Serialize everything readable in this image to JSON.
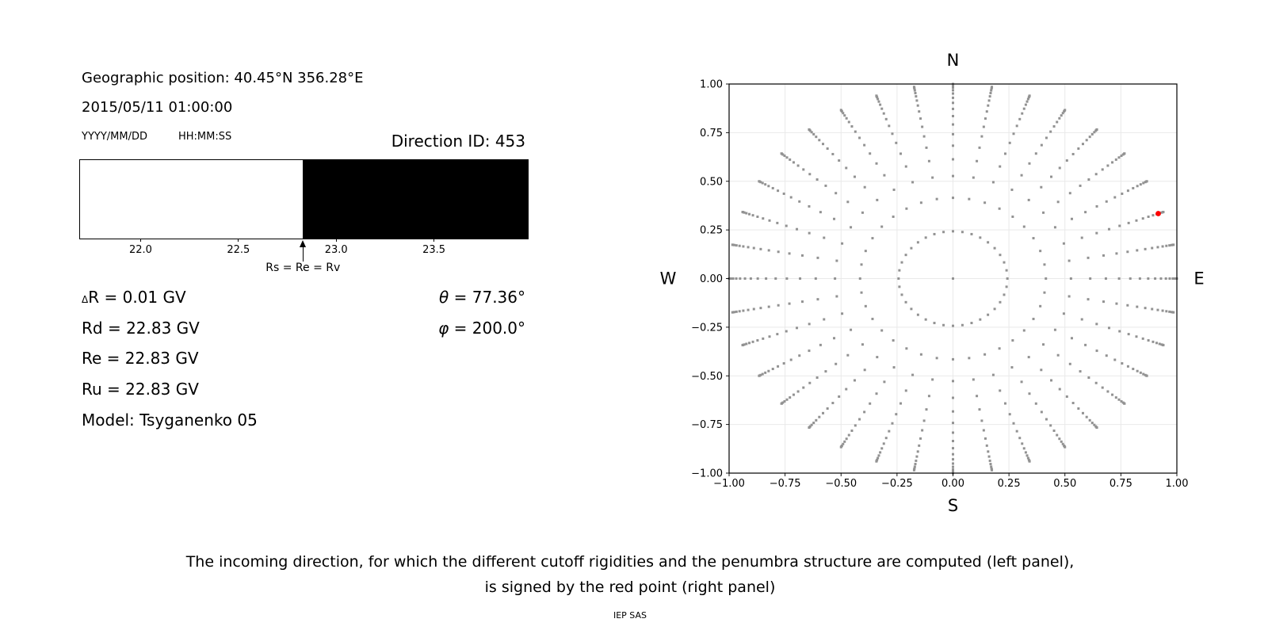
{
  "window": {
    "background": "#ffffff"
  },
  "info_panel": {
    "geographic_position": "Geographic position: 40.45°N 356.28°E",
    "datetime": "2015/05/11 01:00:00",
    "date_format": "YYYY/MM/DD",
    "time_format": "HH:MM:SS",
    "direction_id": "Direction ID: 453",
    "delta_r_symbol": "Δ",
    "delta_r_rest": "R = 0.01 GV",
    "rd": "Rd = 22.83 GV",
    "re": "Re = 22.83 GV",
    "ru": "Ru = 22.83 GV",
    "model": "Model: Tsyganenko 05",
    "theta_symbol": "θ",
    "theta_rest": " = 77.36°",
    "phi_symbol": "φ",
    "phi_rest": " = 200.0°"
  },
  "caption": {
    "line1": "The incoming direction, for which the different cutoff rigidities and the penumbra structure are computed (left panel),",
    "line2": "is signed by the red point (right panel)",
    "credit": "IEP SAS"
  },
  "chart_data": [
    {
      "id": "penumbra-spectrum",
      "type": "bar",
      "title": "",
      "xlabel": "",
      "xlim": [
        21.69,
        23.98
      ],
      "xticks": [
        22.0,
        22.5,
        23.0,
        23.5
      ],
      "xtick_labels": [
        "22.0",
        "22.5",
        "23.0",
        "23.5"
      ],
      "segments": [
        {
          "x0": 21.69,
          "x1": 22.83,
          "color": "#ffffff",
          "name": "allowed-band"
        },
        {
          "x0": 22.83,
          "x1": 23.98,
          "color": "#000000",
          "name": "forbidden-band"
        }
      ],
      "annotation": {
        "x": 22.83,
        "label": "Rs = Re = Rv"
      }
    },
    {
      "id": "incoming-directions",
      "type": "scatter",
      "title": "",
      "xlim": [
        -1.0,
        1.0
      ],
      "ylim": [
        -1.0,
        1.0
      ],
      "xticks": [
        -1.0,
        -0.75,
        -0.5,
        -0.25,
        0.0,
        0.25,
        0.5,
        0.75,
        1.0
      ],
      "xtick_labels": [
        "−1.00",
        "−0.75",
        "−0.50",
        "−0.25",
        "0.00",
        "0.25",
        "0.50",
        "0.75",
        "1.00"
      ],
      "yticks": [
        1.0,
        0.75,
        0.5,
        0.25,
        0.0,
        -0.25,
        -0.5,
        -0.75,
        -1.0
      ],
      "ytick_labels": [
        "1.00",
        "0.75",
        "0.50",
        "0.25",
        "0.00",
        "−0.25",
        "−0.50",
        "−0.75",
        "−1.00"
      ],
      "grid": true,
      "grid_color": "#e9e9e9",
      "frame_color": "#000000",
      "compass": {
        "north": "N",
        "south": "S",
        "west": "W",
        "east": "E"
      },
      "series": [
        {
          "name": "direction-grid-dots",
          "marker": "square",
          "color": "#929292",
          "azimuth_start_deg": 0,
          "azimuth_step_deg": 10,
          "azimuth_count": 36,
          "radii": [
            0.243,
            0.415,
            0.527,
            0.613,
            0.683,
            0.742,
            0.792,
            0.835,
            0.872,
            0.903,
            0.929,
            0.951,
            0.968,
            0.982,
            0.992,
            0.998,
            1.0
          ],
          "extra_points": [
            [
              0.0,
              0.0
            ]
          ]
        },
        {
          "name": "selected-direction",
          "marker": "circle",
          "color": "#ff0000",
          "points": [
            [
              0.917,
              0.334
            ]
          ]
        }
      ]
    }
  ]
}
